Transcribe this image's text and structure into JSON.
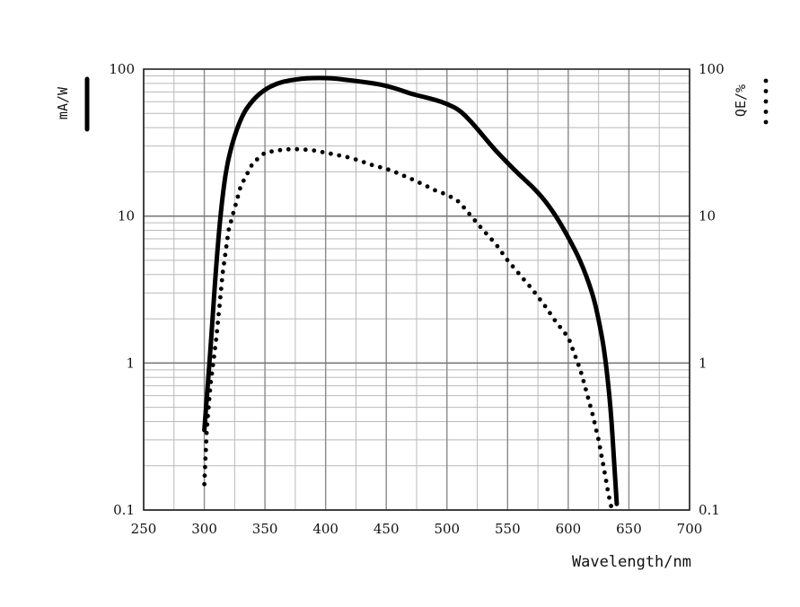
{
  "chart_data": {
    "type": "line",
    "xlabel": "Wavelength/nm",
    "ylabel_left": "mA/W",
    "ylabel_right": "QE/%",
    "y_scale": "log",
    "xlim": [
      250,
      700
    ],
    "ylim": [
      0.1,
      100
    ],
    "x_ticks": [
      "250",
      "300",
      "350",
      "400",
      "450",
      "500",
      "550",
      "600",
      "650",
      "700"
    ],
    "y_ticks_left": [
      "0.1",
      "1",
      "10",
      "100"
    ],
    "y_ticks_right": [
      "0.1",
      "1",
      "10",
      "100"
    ],
    "grid": true,
    "series": [
      {
        "name": "mA/W",
        "style": "solid",
        "color": "#000000",
        "x": [
          300,
          305,
          310,
          315,
          320,
          330,
          340,
          350,
          360,
          370,
          380,
          390,
          400,
          410,
          420,
          430,
          440,
          450,
          460,
          470,
          480,
          490,
          500,
          510,
          520,
          530,
          540,
          550,
          560,
          570,
          580,
          590,
          600,
          610,
          620,
          625,
          630,
          635,
          638,
          640
        ],
        "values": [
          0.35,
          1.2,
          5,
          14,
          26,
          47,
          62,
          73,
          80,
          84,
          86,
          87,
          87,
          86,
          84,
          82,
          80,
          77,
          73,
          68,
          65,
          62,
          58,
          53,
          44,
          35,
          28,
          23,
          19,
          16,
          13,
          10,
          7.2,
          5,
          3,
          2,
          1.2,
          0.5,
          0.2,
          0.11
        ]
      },
      {
        "name": "QE/%",
        "style": "dotted",
        "color": "#000000",
        "x": [
          300,
          302,
          305,
          310,
          315,
          320,
          330,
          340,
          350,
          360,
          370,
          380,
          390,
          400,
          410,
          420,
          430,
          440,
          450,
          460,
          470,
          480,
          490,
          500,
          510,
          520,
          530,
          540,
          550,
          560,
          570,
          580,
          590,
          600,
          610,
          620,
          625,
          630,
          633,
          636
        ],
        "values": [
          0.15,
          0.35,
          0.7,
          1.5,
          4,
          8,
          16,
          23,
          27,
          28,
          28.5,
          28.5,
          28,
          27,
          26,
          25,
          23.5,
          22,
          21,
          19.5,
          18,
          16.5,
          15,
          14,
          12.5,
          10,
          8,
          6.5,
          5,
          4,
          3.2,
          2.5,
          1.9,
          1.5,
          0.9,
          0.45,
          0.3,
          0.18,
          0.13,
          0.1
        ]
      }
    ]
  }
}
